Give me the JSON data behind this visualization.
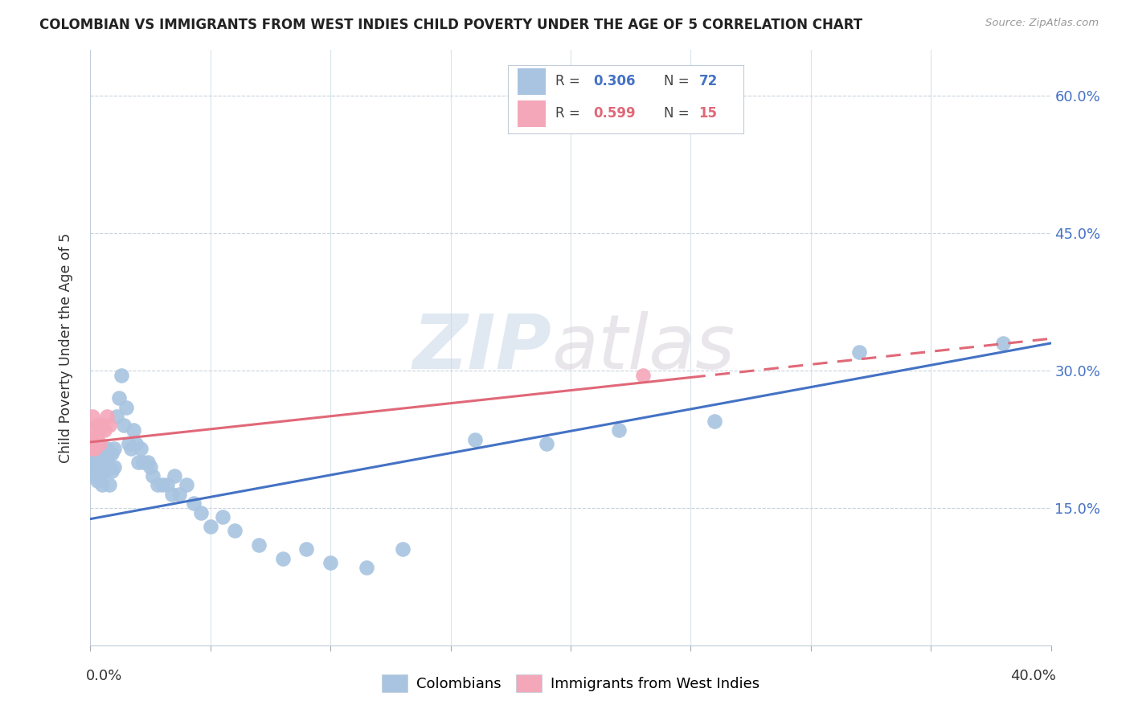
{
  "title": "COLOMBIAN VS IMMIGRANTS FROM WEST INDIES CHILD POVERTY UNDER THE AGE OF 5 CORRELATION CHART",
  "source": "Source: ZipAtlas.com",
  "ylabel": "Child Poverty Under the Age of 5",
  "ytick_values": [
    0.15,
    0.3,
    0.45,
    0.6
  ],
  "xlim": [
    0.0,
    0.4
  ],
  "ylim": [
    0.0,
    0.65
  ],
  "blue_color": "#a8c4e0",
  "blue_line_color": "#4472c4",
  "pink_color": "#f4a7b9",
  "pink_line_color": "#e06878",
  "watermark_zip": "ZIP",
  "watermark_atlas": "atlas",
  "background_color": "#ffffff",
  "grid_color": "#c8d4de",
  "colombians_x": [
    0.001,
    0.001,
    0.001,
    0.002,
    0.002,
    0.002,
    0.002,
    0.002,
    0.003,
    0.003,
    0.003,
    0.003,
    0.003,
    0.004,
    0.004,
    0.004,
    0.004,
    0.005,
    0.005,
    0.005,
    0.005,
    0.006,
    0.006,
    0.006,
    0.007,
    0.007,
    0.008,
    0.008,
    0.008,
    0.009,
    0.009,
    0.01,
    0.01,
    0.011,
    0.012,
    0.013,
    0.014,
    0.015,
    0.016,
    0.017,
    0.018,
    0.019,
    0.02,
    0.021,
    0.022,
    0.024,
    0.025,
    0.026,
    0.028,
    0.03,
    0.032,
    0.034,
    0.035,
    0.037,
    0.04,
    0.043,
    0.046,
    0.05,
    0.055,
    0.06,
    0.07,
    0.08,
    0.09,
    0.1,
    0.115,
    0.13,
    0.16,
    0.19,
    0.22,
    0.26,
    0.32,
    0.38
  ],
  "colombians_y": [
    0.215,
    0.205,
    0.195,
    0.22,
    0.215,
    0.205,
    0.195,
    0.185,
    0.215,
    0.21,
    0.2,
    0.19,
    0.18,
    0.215,
    0.21,
    0.195,
    0.185,
    0.215,
    0.2,
    0.19,
    0.175,
    0.21,
    0.2,
    0.19,
    0.215,
    0.2,
    0.21,
    0.195,
    0.175,
    0.21,
    0.19,
    0.215,
    0.195,
    0.25,
    0.27,
    0.295,
    0.24,
    0.26,
    0.22,
    0.215,
    0.235,
    0.22,
    0.2,
    0.215,
    0.2,
    0.2,
    0.195,
    0.185,
    0.175,
    0.175,
    0.175,
    0.165,
    0.185,
    0.165,
    0.175,
    0.155,
    0.145,
    0.13,
    0.14,
    0.125,
    0.11,
    0.095,
    0.105,
    0.09,
    0.085,
    0.105,
    0.225,
    0.22,
    0.235,
    0.245,
    0.32,
    0.33
  ],
  "west_indies_x": [
    0.001,
    0.001,
    0.001,
    0.002,
    0.002,
    0.002,
    0.003,
    0.003,
    0.004,
    0.004,
    0.005,
    0.006,
    0.007,
    0.008,
    0.23
  ],
  "west_indies_y": [
    0.25,
    0.225,
    0.215,
    0.235,
    0.225,
    0.215,
    0.24,
    0.225,
    0.235,
    0.22,
    0.24,
    0.235,
    0.25,
    0.24,
    0.295
  ],
  "blue_line_x0": 0.0,
  "blue_line_y0": 0.138,
  "blue_line_x1": 0.4,
  "blue_line_y1": 0.33,
  "pink_line_x0": 0.0,
  "pink_line_y0": 0.222,
  "pink_line_x1": 0.4,
  "pink_line_y1": 0.335
}
